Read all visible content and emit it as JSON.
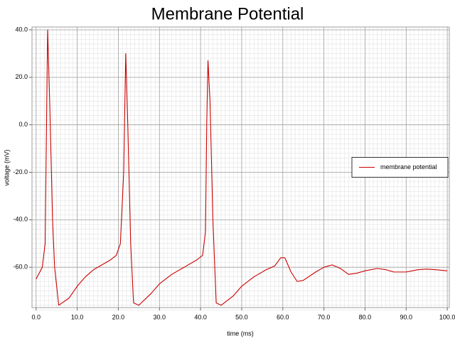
{
  "chart_data": {
    "type": "line",
    "title": "Membrane Potential",
    "x_label": "time (ms)",
    "y_label": "voltage (mV)",
    "x": [
      0,
      1.5,
      2.2,
      2.8,
      3.3,
      4.0,
      4.5,
      5.5,
      8,
      10,
      12,
      14,
      16,
      18,
      19.5,
      20.5,
      21.3,
      21.8,
      22.3,
      23,
      23.7,
      25,
      28,
      30,
      33,
      36,
      39,
      40.5,
      41.2,
      41.5,
      41.8,
      42.3,
      43,
      43.8,
      45,
      48,
      50,
      53,
      56,
      58,
      59.5,
      60.5,
      62,
      63.5,
      65,
      68,
      70,
      72,
      74,
      76,
      78,
      80,
      83,
      85,
      87,
      90,
      93,
      95,
      97,
      100
    ],
    "series": [
      {
        "name": "membrane potential",
        "color": "#cc0000",
        "values": [
          -65,
          -60,
          -50,
          40,
          10,
          -40,
          -60,
          -76,
          -73,
          -68,
          -64,
          -61,
          -59,
          -57,
          -55,
          -50,
          -20,
          30,
          0,
          -50,
          -75,
          -76,
          -71,
          -67,
          -63,
          -60,
          -57,
          -55,
          -45,
          0,
          27,
          10,
          -40,
          -75,
          -76,
          -72,
          -68,
          -64,
          -61,
          -59.5,
          -56,
          -56,
          -62,
          -66,
          -65.5,
          -62,
          -60,
          -59,
          -60.5,
          -63,
          -62.5,
          -61.5,
          -60.5,
          -61,
          -62,
          -62,
          -61,
          -60.8,
          -61,
          -61.5
        ]
      }
    ],
    "xlim": [
      -1,
      100.5
    ],
    "ylim": [
      -77,
      41.2
    ],
    "xticks": [
      {
        "value": 0,
        "label": "0.0"
      },
      {
        "value": 10,
        "label": "10.0"
      },
      {
        "value": 20,
        "label": "20.0"
      },
      {
        "value": 30,
        "label": "30.0"
      },
      {
        "value": 40,
        "label": "40.0"
      },
      {
        "value": 50,
        "label": "50.0"
      },
      {
        "value": 60,
        "label": "60.0"
      },
      {
        "value": 70,
        "label": "70.0"
      },
      {
        "value": 80,
        "label": "80.0"
      },
      {
        "value": 90,
        "label": "90.0"
      },
      {
        "value": 100,
        "label": "100.0"
      }
    ],
    "yticks": [
      {
        "value": -60,
        "label": "-60.0"
      },
      {
        "value": -40,
        "label": "-40.0"
      },
      {
        "value": -20,
        "label": "-20.0"
      },
      {
        "value": 0,
        "label": "0.0"
      },
      {
        "value": 20,
        "label": "20.0"
      },
      {
        "value": 40,
        "label": "40.0"
      }
    ],
    "grid": true,
    "legend": "right"
  }
}
